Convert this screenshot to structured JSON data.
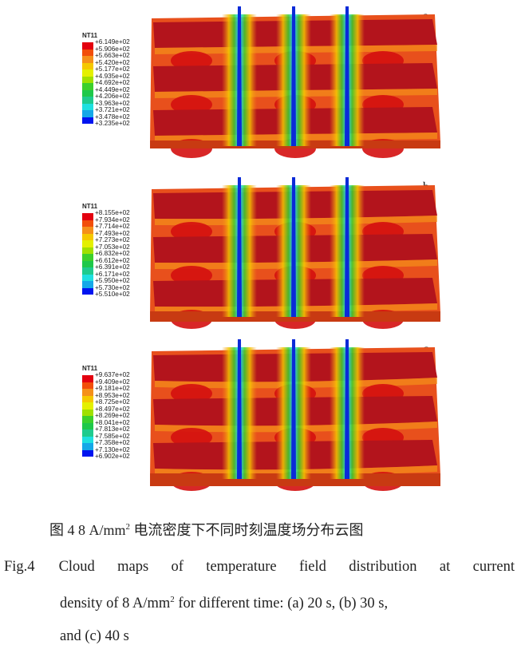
{
  "legend_colors": [
    "#e3000f",
    "#f24e0a",
    "#f5901a",
    "#f5c800",
    "#e4f000",
    "#a0e000",
    "#3cd02c",
    "#1ec84a",
    "#1ecb8e",
    "#1ee0e0",
    "#14a8e8",
    "#1060e8",
    "#0014f0"
  ],
  "panels": [
    {
      "label": "a",
      "variable": "NT11",
      "ticks": [
        "+6.149e+02",
        "+5.906e+02",
        "+5.663e+02",
        "+5.420e+02",
        "+5.177e+02",
        "+4.935e+02",
        "+4.692e+02",
        "+4.449e+02",
        "+4.206e+02",
        "+3.963e+02",
        "+3.721e+02",
        "+3.478e+02",
        "+3.235e+02"
      ]
    },
    {
      "label": "b",
      "variable": "NT11",
      "ticks": [
        "+8.155e+02",
        "+7.934e+02",
        "+7.714e+02",
        "+7.493e+02",
        "+7.273e+02",
        "+7.053e+02",
        "+6.832e+02",
        "+6.612e+02",
        "+6.391e+02",
        "+6.171e+02",
        "+5.950e+02",
        "+5.730e+02",
        "+5.510e+02"
      ]
    },
    {
      "label": "c",
      "variable": "NT11",
      "ticks": [
        "+9.637e+02",
        "+9.409e+02",
        "+9.181e+02",
        "+8.953e+02",
        "+8.725e+02",
        "+8.497e+02",
        "+8.269e+02",
        "+8.041e+02",
        "+7.813e+02",
        "+7.585e+02",
        "+7.358e+02",
        "+7.130e+02",
        "+6.902e+02"
      ]
    }
  ],
  "caption": {
    "cn_prefix": "图 4    8 A/mm",
    "cn_sup": "2",
    "cn_suffix": " 电流密度下不同时刻温度场分布云图",
    "en_label": "Fig.4",
    "en_line1": "Cloud maps of temperature field distribution at current",
    "en_line2_prefix": "density of 8 A/mm",
    "en_line2_sup": "2",
    "en_line2_suffix": " for different time: (a) 20 s, (b) 30 s,",
    "en_line3": "and (c) 40 s"
  }
}
